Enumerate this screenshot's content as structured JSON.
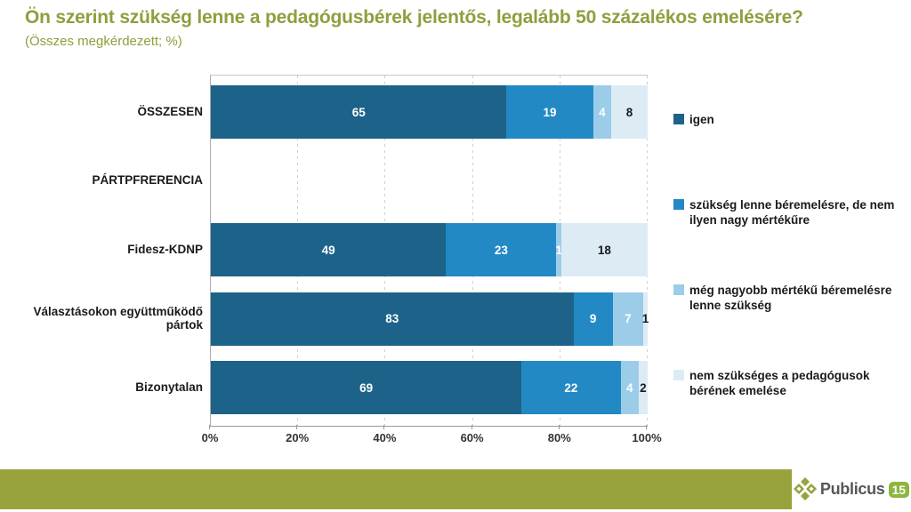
{
  "header": {
    "title": "Ön szerint szükség lenne a pedagógusbérek jelentős, legalább 50 százalékos emelésére?",
    "subtitle": "(Összes megkérdezett; %)"
  },
  "chart_data": {
    "type": "bar",
    "orientation": "horizontal",
    "stacked": true,
    "normalized_to_100_percent": true,
    "categories": [
      "ÖSSZESEN",
      "PÁRTPFRERENCIA",
      "Fidesz-KDNP",
      "Választásokon együttműködő pártok",
      "Bizonytalan"
    ],
    "rows": [
      {
        "label": "ÖSSZESEN",
        "values": [
          65,
          19,
          4,
          8
        ]
      },
      {
        "label": "PÁRTPFRERENCIA",
        "values": []
      },
      {
        "label": "Fidesz-KDNP",
        "values": [
          49,
          23,
          1,
          18
        ]
      },
      {
        "label": "Választásokon együttműködő pártok",
        "values": [
          83,
          9,
          7,
          1
        ]
      },
      {
        "label": "Bizonytalan",
        "values": [
          69,
          22,
          4,
          2
        ]
      }
    ],
    "series": [
      {
        "name": "igen",
        "color": "#1d6389",
        "label_color": "#ffffff"
      },
      {
        "name": "szükség lenne béremelésre, de nem ilyen nagy mértékűre",
        "color": "#2289c4",
        "label_color": "#ffffff"
      },
      {
        "name": "még nagyobb mértékű béremelésre lenne szükség",
        "color": "#9bcde9",
        "label_color": "#ffffff"
      },
      {
        "name": "nem szükséges a pedagógusok bérének emelése",
        "color": "#ddebf5",
        "label_color": "#1a1a1a"
      }
    ],
    "x_ticks": [
      "0%",
      "20%",
      "40%",
      "60%",
      "80%",
      "100%"
    ],
    "xlim": [
      0,
      100
    ],
    "grid": "dashed-vertical",
    "legend_position": "right"
  },
  "footer": {
    "brand": "Publicus",
    "brand_badge": "15"
  },
  "colors": {
    "title_green": "#8ca03e",
    "footer_green": "#99a33c",
    "badge_green": "#8cb63e",
    "brand_gray": "#55565a"
  }
}
